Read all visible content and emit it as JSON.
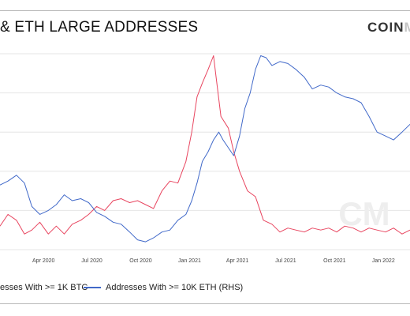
{
  "header": {
    "title": "& ETH LARGE ADDRESSES",
    "brand_dark": "COIN",
    "brand_faded": "M"
  },
  "watermark": "CM",
  "chart_data": {
    "type": "line",
    "x_range": [
      "2020-01-10",
      "2022-02-20"
    ],
    "x_ticks": [
      {
        "date": "2020-04-01",
        "label": "Apr 2020"
      },
      {
        "date": "2020-07-01",
        "label": "Jul 2020"
      },
      {
        "date": "2020-10-01",
        "label": "Oct 2020"
      },
      {
        "date": "2021-01-01",
        "label": "Jan 2021"
      },
      {
        "date": "2021-04-01",
        "label": "Apr 2021"
      },
      {
        "date": "2021-07-01",
        "label": "Jul 2021"
      },
      {
        "date": "2021-10-01",
        "label": "Oct 2021"
      },
      {
        "date": "2022-01-01",
        "label": "Jan 2022"
      }
    ],
    "ylim": [
      0,
      100
    ],
    "grid": true,
    "legend_position": "bottom",
    "series": [
      {
        "name": "esses With >= 1K BTC",
        "color": "#e8455f",
        "points": [
          [
            "2020-01-10",
            12
          ],
          [
            "2020-01-25",
            18
          ],
          [
            "2020-02-10",
            15
          ],
          [
            "2020-02-25",
            8
          ],
          [
            "2020-03-10",
            10
          ],
          [
            "2020-03-25",
            14
          ],
          [
            "2020-04-10",
            8
          ],
          [
            "2020-04-25",
            12
          ],
          [
            "2020-05-10",
            8
          ],
          [
            "2020-05-25",
            13
          ],
          [
            "2020-06-10",
            15
          ],
          [
            "2020-06-25",
            18
          ],
          [
            "2020-07-10",
            22
          ],
          [
            "2020-07-25",
            20
          ],
          [
            "2020-08-10",
            25
          ],
          [
            "2020-08-25",
            26
          ],
          [
            "2020-09-10",
            24
          ],
          [
            "2020-09-25",
            25
          ],
          [
            "2020-10-10",
            23
          ],
          [
            "2020-10-25",
            21
          ],
          [
            "2020-11-10",
            30
          ],
          [
            "2020-11-25",
            35
          ],
          [
            "2020-12-10",
            34
          ],
          [
            "2020-12-25",
            45
          ],
          [
            "2021-01-05",
            60
          ],
          [
            "2021-01-15",
            78
          ],
          [
            "2021-01-25",
            85
          ],
          [
            "2021-02-05",
            92
          ],
          [
            "2021-02-15",
            99
          ],
          [
            "2021-02-20",
            88
          ],
          [
            "2021-03-01",
            68
          ],
          [
            "2021-03-15",
            62
          ],
          [
            "2021-03-25",
            50
          ],
          [
            "2021-04-05",
            40
          ],
          [
            "2021-04-20",
            30
          ],
          [
            "2021-05-05",
            27
          ],
          [
            "2021-05-20",
            15
          ],
          [
            "2021-06-05",
            13
          ],
          [
            "2021-06-20",
            9
          ],
          [
            "2021-07-05",
            11
          ],
          [
            "2021-07-20",
            10
          ],
          [
            "2021-08-05",
            9
          ],
          [
            "2021-08-20",
            11
          ],
          [
            "2021-09-05",
            10
          ],
          [
            "2021-09-20",
            11
          ],
          [
            "2021-10-05",
            9
          ],
          [
            "2021-10-20",
            12
          ],
          [
            "2021-11-05",
            11
          ],
          [
            "2021-11-20",
            9
          ],
          [
            "2021-12-05",
            11
          ],
          [
            "2021-12-20",
            10
          ],
          [
            "2022-01-05",
            9
          ],
          [
            "2022-01-20",
            11
          ],
          [
            "2022-02-05",
            8
          ],
          [
            "2022-02-20",
            10
          ]
        ]
      },
      {
        "name": "Addresses With >= 10K ETH (RHS)",
        "color": "#4169c9",
        "points": [
          [
            "2020-01-10",
            33
          ],
          [
            "2020-01-25",
            35
          ],
          [
            "2020-02-10",
            38
          ],
          [
            "2020-02-25",
            34
          ],
          [
            "2020-03-10",
            22
          ],
          [
            "2020-03-25",
            18
          ],
          [
            "2020-04-10",
            20
          ],
          [
            "2020-04-25",
            23
          ],
          [
            "2020-05-10",
            28
          ],
          [
            "2020-05-25",
            25
          ],
          [
            "2020-06-10",
            26
          ],
          [
            "2020-06-25",
            24
          ],
          [
            "2020-07-10",
            19
          ],
          [
            "2020-07-25",
            17
          ],
          [
            "2020-08-10",
            14
          ],
          [
            "2020-08-25",
            13
          ],
          [
            "2020-09-10",
            9
          ],
          [
            "2020-09-25",
            5
          ],
          [
            "2020-10-10",
            4
          ],
          [
            "2020-10-25",
            6
          ],
          [
            "2020-11-10",
            9
          ],
          [
            "2020-11-25",
            10
          ],
          [
            "2020-12-10",
            15
          ],
          [
            "2020-12-25",
            18
          ],
          [
            "2021-01-05",
            25
          ],
          [
            "2021-01-15",
            34
          ],
          [
            "2021-01-25",
            45
          ],
          [
            "2021-02-05",
            50
          ],
          [
            "2021-02-15",
            56
          ],
          [
            "2021-02-25",
            60
          ],
          [
            "2021-03-05",
            56
          ],
          [
            "2021-03-15",
            52
          ],
          [
            "2021-03-25",
            48
          ],
          [
            "2021-04-05",
            58
          ],
          [
            "2021-04-15",
            72
          ],
          [
            "2021-04-25",
            80
          ],
          [
            "2021-05-05",
            92
          ],
          [
            "2021-05-15",
            99
          ],
          [
            "2021-05-25",
            98
          ],
          [
            "2021-06-05",
            94
          ],
          [
            "2021-06-20",
            96
          ],
          [
            "2021-07-05",
            95
          ],
          [
            "2021-07-20",
            92
          ],
          [
            "2021-08-05",
            88
          ],
          [
            "2021-08-20",
            82
          ],
          [
            "2021-09-05",
            84
          ],
          [
            "2021-09-20",
            83
          ],
          [
            "2021-10-05",
            80
          ],
          [
            "2021-10-20",
            78
          ],
          [
            "2021-11-05",
            77
          ],
          [
            "2021-11-20",
            75
          ],
          [
            "2021-12-05",
            68
          ],
          [
            "2021-12-20",
            60
          ],
          [
            "2022-01-05",
            58
          ],
          [
            "2022-01-20",
            56
          ],
          [
            "2022-02-05",
            60
          ],
          [
            "2022-02-20",
            64
          ]
        ]
      }
    ]
  }
}
